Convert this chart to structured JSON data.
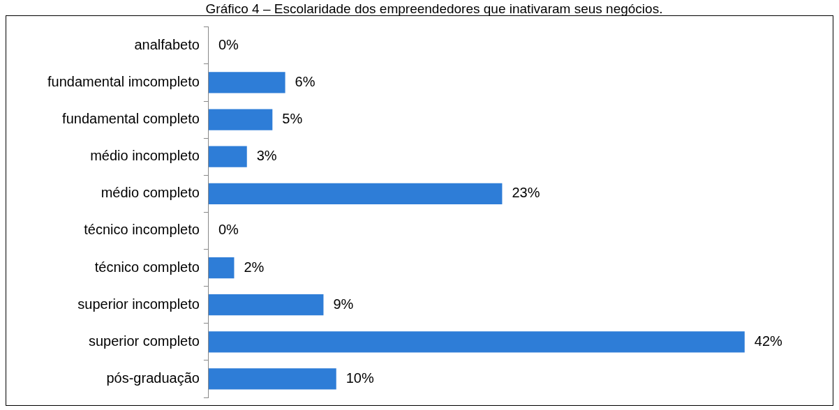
{
  "chart_data": {
    "type": "bar",
    "orientation": "horizontal",
    "title": "Gráfico 4 – Escolaridade dos empreendedores que inativaram seus negócios.",
    "categories": [
      "analfabeto",
      "fundamental imcompleto",
      "fundamental completo",
      "médio incompleto",
      "médio completo",
      "técnico incompleto",
      "técnico completo",
      "superior incompleto",
      "superior completo",
      "pós-graduação"
    ],
    "values": [
      0,
      6,
      5,
      3,
      23,
      0,
      2,
      9,
      42,
      10
    ],
    "value_labels": [
      "0%",
      "6%",
      "5%",
      "3%",
      "23%",
      "0%",
      "2%",
      "9%",
      "42%",
      "10%"
    ],
    "color": "#2e7dd7",
    "legend": false,
    "tick_labels": "y"
  }
}
